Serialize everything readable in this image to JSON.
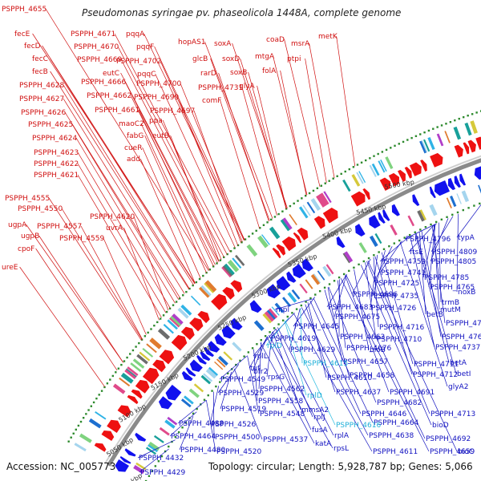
{
  "title": "Pseudomonas syringae pv. phaseolicola 1448A, complete genome",
  "accession": "Accession: NC_005773",
  "summary": "Topology: circular; Length: 5,928,787 bp; Genes: 5,066",
  "colors": {
    "forward": "#ee1111",
    "reverse": "#1111ee",
    "highlight": "#22b8e0",
    "backbone": "#8a8a8a",
    "label_red": "#d01010",
    "label_blue": "#1010c0"
  },
  "ticks": [
    "5000 kbp",
    "5050 kbp",
    "5100 kbp",
    "5150 kbp",
    "5200 kbp",
    "5250 kbp",
    "5300 kbp",
    "5350 kbp",
    "5400 kbp",
    "5450 kbp",
    "5500 kbp"
  ],
  "red_labels": [
    "PSPPH_4655",
    "fecE",
    "fecD",
    "fecC",
    "fecB",
    "PSPPH_4628",
    "PSPPH_4627",
    "PSPPH_4626",
    "PSPPH_4625",
    "PSPPH_4624",
    "PSPPH_4623",
    "PSPPH_4622",
    "PSPPH_4621",
    "PSPPH_4671",
    "PSPPH_4670",
    "PSPPH_4669",
    "eutC",
    "PSPPH_4666",
    "PSPPH_4662",
    "PSPPH_4661",
    "maoC2",
    "fabG",
    "cueR",
    "add",
    "pqqA",
    "pqqF",
    "PSPPH_4702",
    "pqqC",
    "PSPPH_4700",
    "PSPPH_4699",
    "PSPPH_4697",
    "ppa",
    "eutB",
    "hopAS1",
    "glcB",
    "rarD",
    "PSPPH_4731",
    "comF",
    "soxA",
    "soxD",
    "soxB",
    "glyA",
    "mtgA",
    "folA",
    "coaD",
    "ptpi",
    "msrA",
    "metK",
    "PSPPH_4555",
    "PSPPH_4550",
    "ugpA",
    "ugpB",
    "cpoF",
    "ureE",
    "PSPPH_4557",
    "PSPPH_4559",
    "PSPPH_4620",
    "uvrA"
  ],
  "blue_labels": [
    "typA",
    "PSPPH_4796",
    "PSPPH_4809",
    "ftsE",
    "PSPPH_4805",
    "PSPPH_4759",
    "PSPPH_4741",
    "PSPPH_4785",
    "PSPPH_4725",
    "PSPPH_4765",
    "noxB",
    "PSPPH_4696",
    "PSPPH_4735",
    "trmB",
    "PSPPH_4683",
    "PSPPH_4726",
    "mutM",
    "mpl",
    "PSPPH_4675",
    "betB",
    "PSPPH_4645",
    "PSPPH_4716",
    "PSPPH_4761",
    "PSPPH_4619",
    "PSPPH_4663",
    "PSPPH_4710",
    "PSPPH_4762",
    "PSPPH_4629",
    "bioB",
    "PSPPH_4676",
    "PSPPH_4737",
    "rplL",
    "tuf",
    "PSPPH_4657",
    "PSPPH_4711",
    "betA",
    "bfr2",
    "PSPPH_4610",
    "PSPPH_4658",
    "PSPPH_4712",
    "betI",
    "PSPPH_4549",
    "rpsG",
    "PSPPH_4562",
    "PSPPH_4637",
    "PSPPH_4691",
    "PSPPH_4529",
    "PSPPH_4558",
    "mmsA2",
    "PSPPH_4682",
    "glyA2",
    "PSPPH_4519",
    "PSPPH_4548",
    "rplJ",
    "PSPPH_4646",
    "PSPPH_4713",
    "PSPPH_4488",
    "fusA",
    "PSPPH_4664",
    "bioD",
    "PSPPH_4464",
    "PSPPH_4526",
    "PSPPH_4500",
    "PSPPH_4537",
    "katA",
    "PSPPH_4638",
    "PSPPH_4692",
    "PSPPH_4480",
    "PSPPH_4520",
    "rplA",
    "rpsL",
    "PSPPH_4611",
    "PSPPH_4659",
    "bioC",
    "PSPPH_4432",
    "PSPPH_4429"
  ],
  "cyan_labels": [
    "rplD",
    "PSPPH_4615",
    "rplD",
    "PSPPH_4616"
  ]
}
